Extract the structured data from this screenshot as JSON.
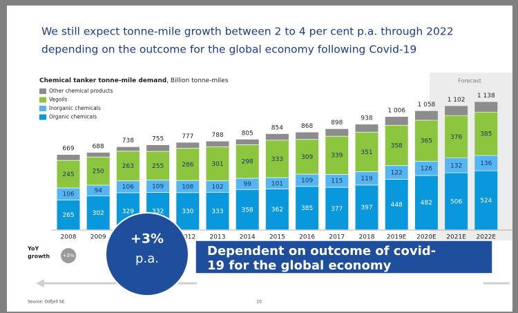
{
  "title": [
    "We still expect tonne-mile growth between 2 to 4 per cent p.a. through 2022",
    "depending on the outcome for the global economy following Covid-19"
  ],
  "chart_data": {
    "type": "bar",
    "stacked": true,
    "subtitle_bold": "Chemical tanker tonne-mile demand",
    "subtitle_rest": ", Billion tonne-miles",
    "forecast_label": "Forecast",
    "categories": [
      "2008",
      "2009",
      "2010",
      "2011",
      "2012",
      "2013",
      "2014",
      "2015",
      "2016",
      "2017",
      "2018",
      "2019E",
      "2020E",
      "2021E",
      "2022E"
    ],
    "series": [
      {
        "name": "Organic chemicals",
        "color": "#0a98dc",
        "label_color": "#ffffff",
        "show_labels": true,
        "values": [
          265,
          302,
          329,
          332,
          330,
          333,
          358,
          362,
          385,
          377,
          397,
          448,
          482,
          506,
          524
        ]
      },
      {
        "name": "Inorganic chemicals",
        "color": "#55b5f0",
        "label_color": "#16325f",
        "show_labels": true,
        "values": [
          106,
          94,
          106,
          109,
          108,
          102,
          99,
          101,
          109,
          115,
          119,
          122,
          126,
          132,
          136
        ]
      },
      {
        "name": "Vegoils",
        "color": "#8cc63f",
        "label_color": "#16325f",
        "show_labels": true,
        "values": [
          245,
          250,
          263,
          255,
          286,
          301,
          298,
          333,
          309,
          339,
          351,
          358,
          365,
          376,
          385
        ]
      },
      {
        "name": "Other chemical products",
        "color": "#8c8c8c",
        "label_color": "#ffffff",
        "show_labels": false,
        "values": [
          53,
          42,
          40,
          59,
          53,
          52,
          50,
          58,
          65,
          67,
          71,
          78,
          85,
          88,
          93
        ]
      }
    ],
    "totals": {
      "values": [
        669,
        688,
        738,
        755,
        777,
        788,
        805,
        854,
        868,
        898,
        938,
        1006,
        1058,
        1102,
        1138
      ],
      "value_labels": [
        "669",
        "688",
        "738",
        "755",
        "777",
        "788",
        "805",
        "854",
        "868",
        "898",
        "938",
        "1 006",
        "1 058",
        "1 102",
        "1 138"
      ]
    },
    "yoy": {
      "label": [
        "YoY",
        "growth"
      ],
      "values": [
        "+3%"
      ]
    }
  },
  "callout": {
    "value": "+3%",
    "unit": "p.a.",
    "text": [
      "Dependent on outcome of covid-",
      "19 for the global economy"
    ]
  },
  "footer": {
    "source": "Source: Odfjell SE",
    "page": "10"
  }
}
